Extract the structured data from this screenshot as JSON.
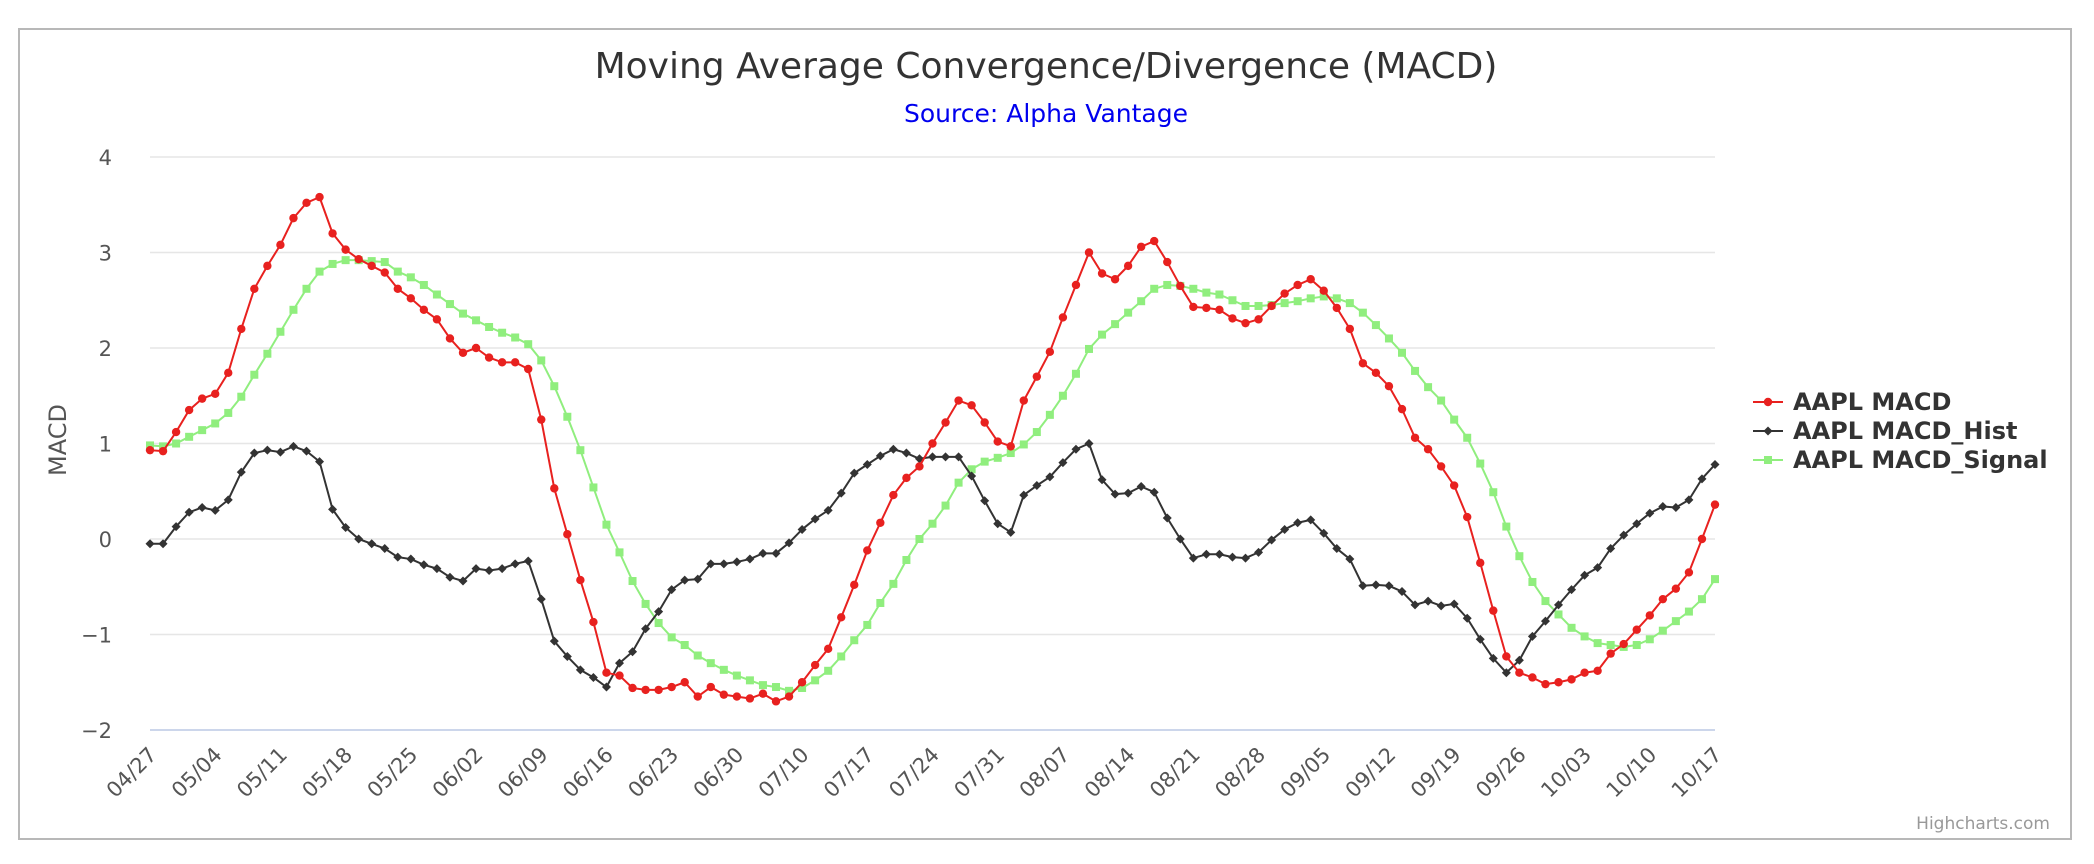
{
  "colors": {
    "macd": "#e8211f",
    "hist": "#333333",
    "signal": "#90ee7e",
    "subtitle": "#0000ee",
    "grid": "#e6e6e6",
    "xaxis": "#ccd6eb"
  },
  "chart_data": {
    "type": "line",
    "title": "Moving Average Convergence/Divergence (MACD)",
    "subtitle": "Source: Alpha Vantage",
    "ylabel": "MACD",
    "xlabel": "",
    "ylim": [
      -2,
      4
    ],
    "yticks": [
      4,
      3,
      2,
      1,
      0,
      -1,
      -2
    ],
    "ytick_labels": [
      "4",
      "3",
      "2",
      "1",
      "0",
      "−1",
      "−2"
    ],
    "xticks": [
      {
        "i": 0,
        "label": "04/27"
      },
      {
        "i": 5,
        "label": "05/04"
      },
      {
        "i": 10,
        "label": "05/11"
      },
      {
        "i": 15,
        "label": "05/18"
      },
      {
        "i": 20,
        "label": "05/25"
      },
      {
        "i": 25,
        "label": "06/02"
      },
      {
        "i": 30,
        "label": "06/09"
      },
      {
        "i": 35,
        "label": "06/16"
      },
      {
        "i": 40,
        "label": "06/23"
      },
      {
        "i": 45,
        "label": "06/30"
      },
      {
        "i": 50,
        "label": "07/10"
      },
      {
        "i": 55,
        "label": "07/17"
      },
      {
        "i": 60,
        "label": "07/24"
      },
      {
        "i": 65,
        "label": "07/31"
      },
      {
        "i": 70,
        "label": "08/07"
      },
      {
        "i": 75,
        "label": "08/14"
      },
      {
        "i": 80,
        "label": "08/21"
      },
      {
        "i": 85,
        "label": "08/28"
      },
      {
        "i": 90,
        "label": "09/05"
      },
      {
        "i": 95,
        "label": "09/12"
      },
      {
        "i": 100,
        "label": "09/19"
      },
      {
        "i": 105,
        "label": "09/26"
      },
      {
        "i": 110,
        "label": "10/03"
      },
      {
        "i": 115,
        "label": "10/10"
      },
      {
        "i": 120,
        "label": "10/17"
      }
    ],
    "legend_position": "right",
    "grid": true,
    "series": [
      {
        "name": "AAPL MACD",
        "marker": "circle",
        "values": [
          0.93,
          0.92,
          1.12,
          1.35,
          1.47,
          1.52,
          1.74,
          2.2,
          2.62,
          2.86,
          3.08,
          3.36,
          3.52,
          3.58,
          3.2,
          3.03,
          2.93,
          2.86,
          2.79,
          2.62,
          2.52,
          2.4,
          2.3,
          2.1,
          1.95,
          2.0,
          1.9,
          1.85,
          1.85,
          1.78,
          1.25,
          0.53,
          0.05,
          -0.43,
          -0.87,
          -1.4,
          -1.43,
          -1.56,
          -1.58,
          -1.58,
          -1.55,
          -1.5,
          -1.65,
          -1.55,
          -1.63,
          -1.65,
          -1.67,
          -1.62,
          -1.7,
          -1.65,
          -1.5,
          -1.32,
          -1.15,
          -0.82,
          -0.48,
          -0.12,
          0.17,
          0.46,
          0.64,
          0.76,
          1.0,
          1.22,
          1.45,
          1.4,
          1.22,
          1.02,
          0.97,
          1.45,
          1.7,
          1.96,
          2.32,
          2.66,
          3.0,
          2.78,
          2.72,
          2.86,
          3.06,
          3.12,
          2.9,
          2.65,
          2.43,
          2.42,
          2.4,
          2.31,
          2.26,
          2.3,
          2.44,
          2.57,
          2.66,
          2.72,
          2.6,
          2.42,
          2.2,
          1.84,
          1.74,
          1.6,
          1.36,
          1.06,
          0.94,
          0.76,
          0.56,
          0.23,
          -0.25,
          -0.75,
          -1.23,
          -1.4,
          -1.45,
          -1.52,
          -1.5,
          -1.47,
          -1.4,
          -1.38,
          -1.2,
          -1.1,
          -0.95,
          -0.8,
          -0.63,
          -0.52,
          -0.35,
          0.0,
          0.36
        ]
      },
      {
        "name": "AAPL MACD_Hist",
        "marker": "diamond",
        "values": [
          -0.05,
          -0.05,
          0.13,
          0.28,
          0.33,
          0.3,
          0.41,
          0.7,
          0.9,
          0.93,
          0.91,
          0.97,
          0.92,
          0.81,
          0.31,
          0.12,
          0.0,
          -0.05,
          -0.1,
          -0.19,
          -0.21,
          -0.27,
          -0.31,
          -0.4,
          -0.44,
          -0.31,
          -0.33,
          -0.31,
          -0.26,
          -0.23,
          -0.63,
          -1.07,
          -1.23,
          -1.37,
          -1.45,
          -1.55,
          -1.3,
          -1.18,
          -0.94,
          -0.76,
          -0.53,
          -0.43,
          -0.42,
          -0.26,
          -0.26,
          -0.24,
          -0.21,
          -0.15,
          -0.15,
          -0.04,
          0.1,
          0.21,
          0.3,
          0.48,
          0.69,
          0.78,
          0.87,
          0.94,
          0.9,
          0.84,
          0.86,
          0.86,
          0.86,
          0.66,
          0.4,
          0.16,
          0.07,
          0.46,
          0.56,
          0.65,
          0.8,
          0.94,
          1.0,
          0.62,
          0.47,
          0.48,
          0.55,
          0.49,
          0.22,
          0.0,
          -0.2,
          -0.16,
          -0.16,
          -0.19,
          -0.2,
          -0.14,
          -0.01,
          0.1,
          0.17,
          0.2,
          0.06,
          -0.1,
          -0.21,
          -0.49,
          -0.48,
          -0.49,
          -0.55,
          -0.69,
          -0.65,
          -0.7,
          -0.68,
          -0.83,
          -1.05,
          -1.25,
          -1.4,
          -1.27,
          -1.02,
          -0.86,
          -0.69,
          -0.53,
          -0.38,
          -0.3,
          -0.1,
          0.04,
          0.16,
          0.27,
          0.34,
          0.33,
          0.41,
          0.63,
          0.78
        ]
      },
      {
        "name": "AAPL MACD_Signal",
        "marker": "square",
        "values": [
          0.98,
          0.97,
          1.0,
          1.07,
          1.14,
          1.21,
          1.32,
          1.49,
          1.72,
          1.94,
          2.17,
          2.4,
          2.62,
          2.8,
          2.88,
          2.92,
          2.92,
          2.91,
          2.9,
          2.8,
          2.74,
          2.66,
          2.56,
          2.46,
          2.36,
          2.29,
          2.22,
          2.16,
          2.11,
          2.04,
          1.87,
          1.6,
          1.28,
          0.93,
          0.54,
          0.15,
          -0.14,
          -0.44,
          -0.68,
          -0.88,
          -1.03,
          -1.11,
          -1.22,
          -1.3,
          -1.37,
          -1.43,
          -1.48,
          -1.53,
          -1.55,
          -1.59,
          -1.56,
          -1.48,
          -1.38,
          -1.23,
          -1.06,
          -0.9,
          -0.67,
          -0.47,
          -0.22,
          0.0,
          0.16,
          0.35,
          0.59,
          0.73,
          0.81,
          0.85,
          0.9,
          0.99,
          1.12,
          1.3,
          1.5,
          1.73,
          1.99,
          2.14,
          2.25,
          2.37,
          2.49,
          2.62,
          2.66,
          2.65,
          2.62,
          2.58,
          2.56,
          2.5,
          2.44,
          2.44,
          2.45,
          2.47,
          2.49,
          2.52,
          2.54,
          2.52,
          2.47,
          2.37,
          2.24,
          2.1,
          1.95,
          1.76,
          1.59,
          1.45,
          1.25,
          1.06,
          0.79,
          0.49,
          0.13,
          -0.18,
          -0.45,
          -0.65,
          -0.79,
          -0.93,
          -1.02,
          -1.09,
          -1.11,
          -1.13,
          -1.11,
          -1.05,
          -0.96,
          -0.86,
          -0.76,
          -0.63,
          -0.42
        ]
      }
    ]
  },
  "credits": "Highcharts.com"
}
